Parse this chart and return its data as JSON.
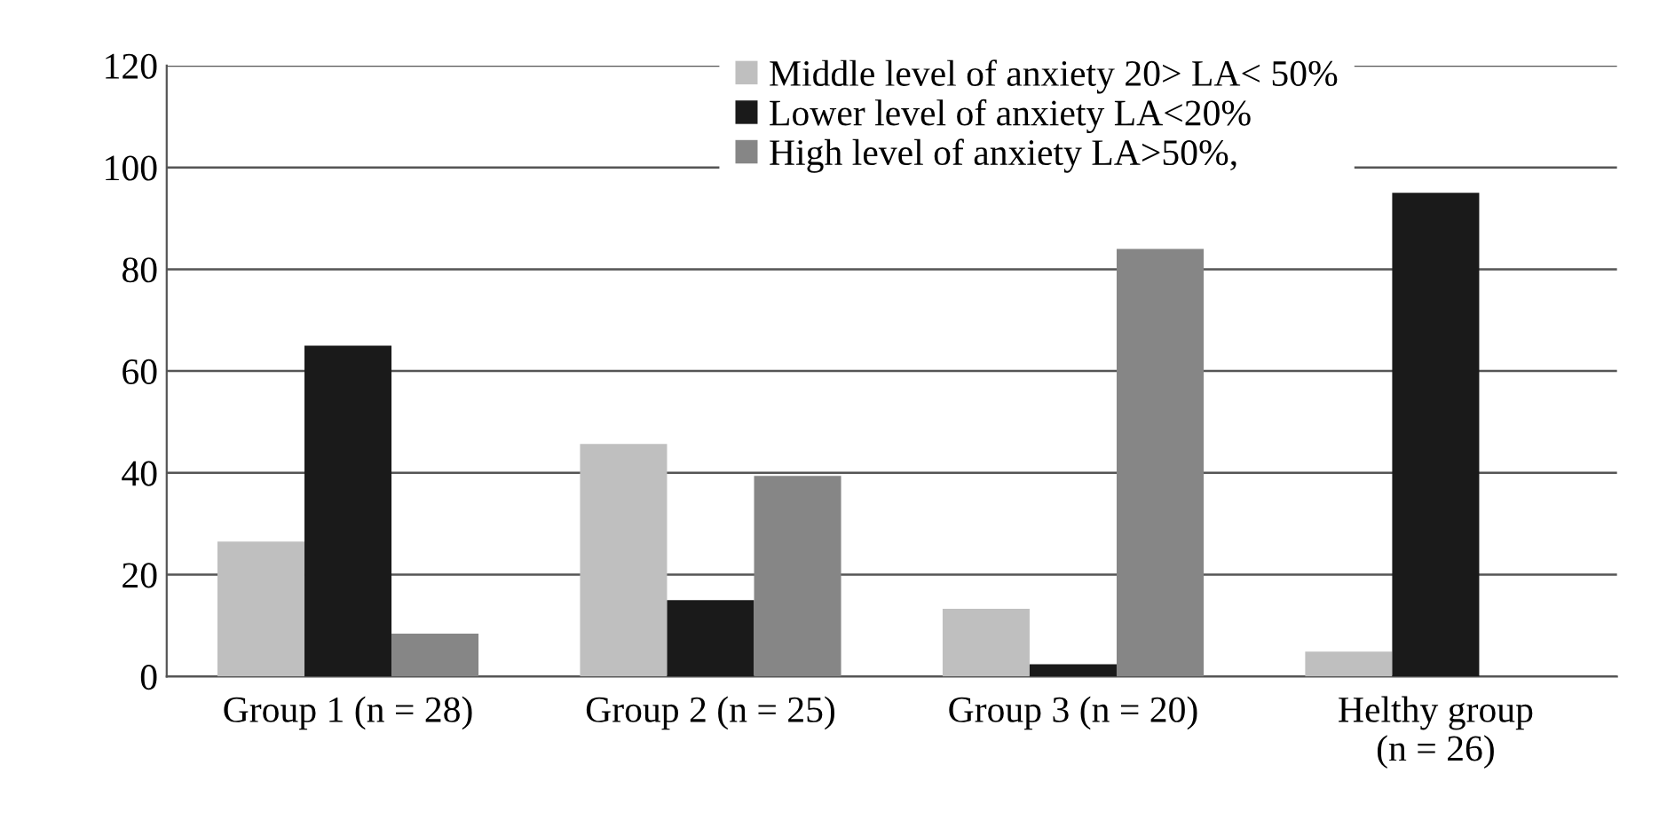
{
  "chart_data": {
    "type": "bar",
    "categories": [
      "Group 1 (n = 28)",
      "Group 2 (n = 25)",
      "Group 3 (n = 20)",
      "Helthy group\n(n = 26)"
    ],
    "series": [
      {
        "name": "Middle level of anxiety 20> LA< 50%",
        "color": "#bfbfbf",
        "values": [
          26.5,
          45.7,
          13.3,
          4.9
        ]
      },
      {
        "name": "Lower level of anxiety LA<20%",
        "color": "#1a1a1a",
        "values": [
          65,
          15,
          2.4,
          95
        ]
      },
      {
        "name": "High level of anxiety LA>50%,",
        "color": "#868686",
        "values": [
          8.4,
          39.4,
          84,
          0
        ]
      }
    ],
    "ylim": [
      0,
      120
    ],
    "yticks": [
      0,
      20,
      40,
      60,
      80,
      100,
      120
    ],
    "grid": "y",
    "legend": "top"
  }
}
